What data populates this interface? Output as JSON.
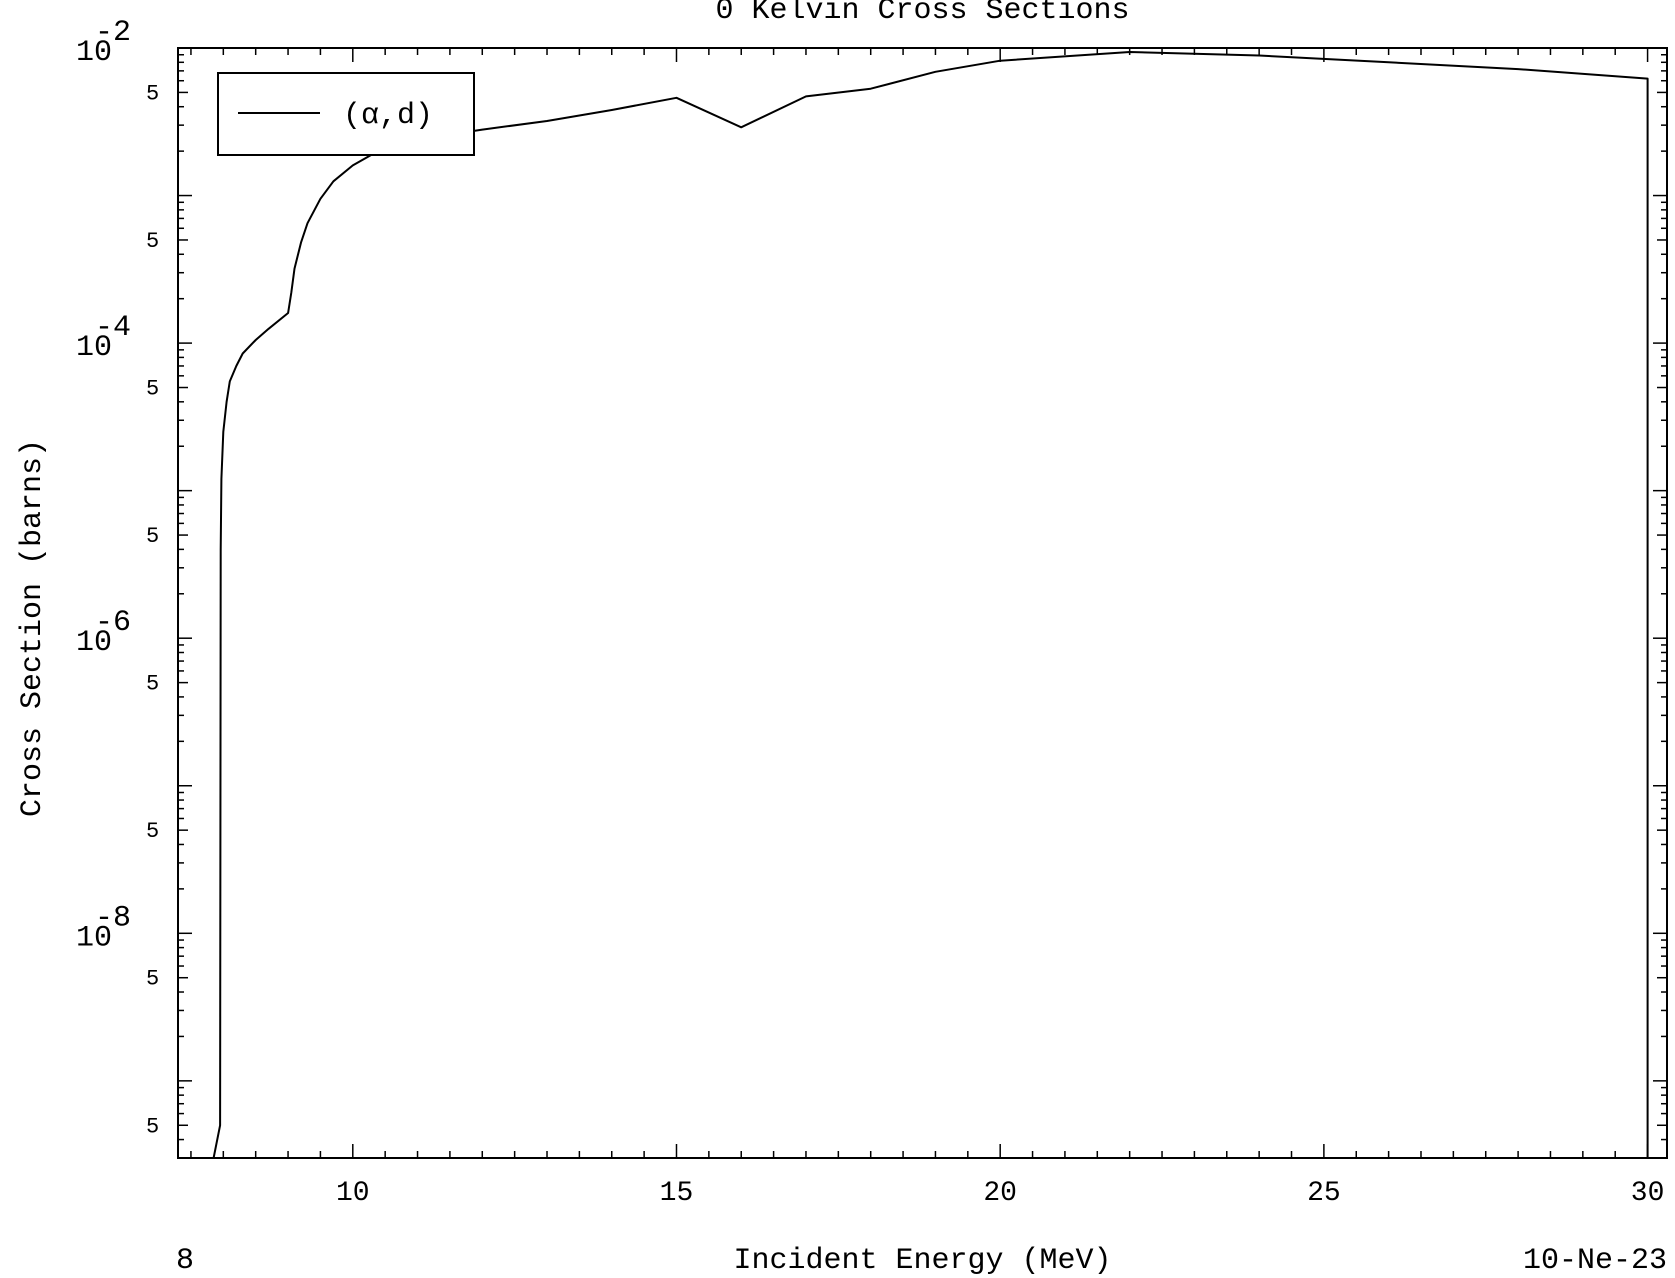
{
  "chart_data": {
    "type": "line",
    "title": "0 Kelvin Cross Sections",
    "xlabel": "Incident Energy (MeV)",
    "ylabel": "Cross Section (barns)",
    "xlim": [
      7.3,
      30.3
    ],
    "ylim": [
      3e-10,
      0.01
    ],
    "yscale": "log",
    "grid": false,
    "legend_position": "top-left",
    "x_ticks": [
      10,
      15,
      20,
      25,
      30
    ],
    "x_tick_labels": [
      "10",
      "15",
      "20",
      "25",
      "30"
    ],
    "y_major_ticks": [
      {
        "value": 0.01,
        "base": "10",
        "exp": "-2"
      },
      {
        "value": 0.0001,
        "base": "10",
        "exp": "-4"
      },
      {
        "value": 1e-06,
        "base": "10",
        "exp": "-6"
      },
      {
        "value": 1e-08,
        "base": "10",
        "exp": "-8"
      }
    ],
    "y_five_label": "5",
    "y_five_values": [
      0.005,
      0.0005,
      5e-05,
      5e-06,
      5e-07,
      5e-08,
      5e-09,
      5e-10
    ],
    "series": [
      {
        "name": "(α,d)",
        "x": [
          7.85,
          7.95,
          7.96,
          7.97,
          8.0,
          8.05,
          8.1,
          8.2,
          8.3,
          8.5,
          8.7,
          9.0,
          9.05,
          9.1,
          9.2,
          9.3,
          9.5,
          9.7,
          10.0,
          10.3,
          10.7,
          11.0,
          12.0,
          13.0,
          14.0,
          15.0,
          16.0,
          17.0,
          18.0,
          19.0,
          20.0,
          22.0,
          24.0,
          26.0,
          28.0,
          30.0,
          30.0
        ],
        "y": [
          3e-10,
          5e-10,
          4e-06,
          1.2e-05,
          2.5e-05,
          4e-05,
          5.5e-05,
          7e-05,
          8.5e-05,
          0.000105,
          0.000125,
          0.00016,
          0.00022,
          0.00032,
          0.00048,
          0.00065,
          0.00095,
          0.00125,
          0.0016,
          0.0019,
          0.0022,
          0.0024,
          0.0028,
          0.0032,
          0.0038,
          0.0046,
          0.0029,
          0.0047,
          0.0053,
          0.0069,
          0.0082,
          0.0094,
          0.0089,
          0.008,
          0.0072,
          0.0062,
          3e-10
        ]
      }
    ],
    "legend_label": "(α,d)",
    "footer_left": "8",
    "footer_right": "10-Ne-23"
  }
}
